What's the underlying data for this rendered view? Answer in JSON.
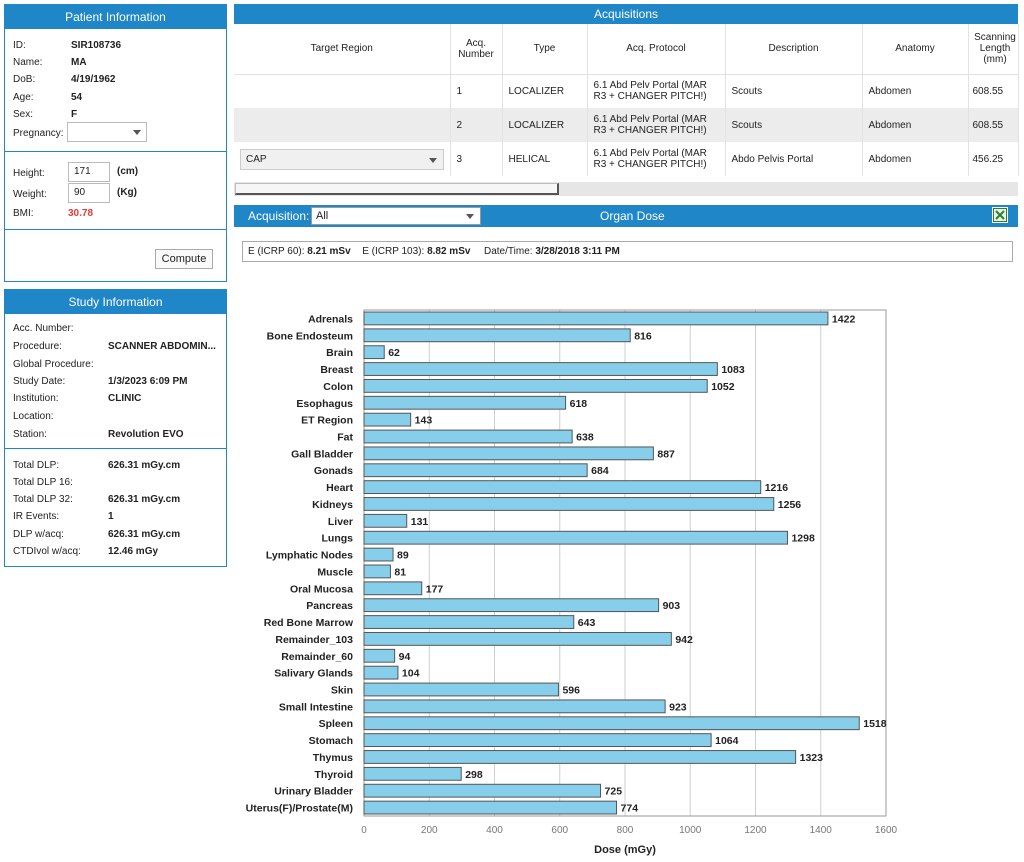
{
  "patient": {
    "title": "Patient Information",
    "fields": [
      {
        "label": "ID:",
        "value": "SIR108736"
      },
      {
        "label": "Name:",
        "value": "MA"
      },
      {
        "label": "DoB:",
        "value": "4/19/1962"
      },
      {
        "label": "Age:",
        "value": "54"
      },
      {
        "label": "Sex:",
        "value": "F"
      }
    ],
    "pregnancy_label": "Pregnancy:",
    "pregnancy_value": "",
    "height_label": "Height:",
    "height_value": "171",
    "height_unit": "(cm)",
    "weight_label": "Weight:",
    "weight_value": "90",
    "weight_unit": "(Kg)",
    "bmi_label": "BMI:",
    "bmi_value": "30.78",
    "bmi_color": "#e53935",
    "compute_label": "Compute"
  },
  "study": {
    "title": "Study Information",
    "fields": [
      {
        "label": "Acc. Number:",
        "value": ""
      },
      {
        "label": "Procedure:",
        "value": "SCANNER ABDOMIN..."
      },
      {
        "label": "Global Procedure:",
        "value": ""
      },
      {
        "label": "Study Date:",
        "value": "1/3/2023 6:09 PM"
      },
      {
        "label": "Institution:",
        "value": "CLINIC"
      },
      {
        "label": "Location:",
        "value": ""
      },
      {
        "label": "Station:",
        "value": "Revolution EVO"
      }
    ],
    "dose_fields": [
      {
        "label": "Total DLP:",
        "value": "626.31 mGy.cm"
      },
      {
        "label": "Total DLP 16:",
        "value": ""
      },
      {
        "label": "Total DLP 32:",
        "value": "626.31 mGy.cm"
      },
      {
        "label": "IR Events:",
        "value": "1"
      },
      {
        "label": "DLP w/acq:",
        "value": "626.31 mGy.cm"
      },
      {
        "label": "CTDIvol w/acq:",
        "value": "12.46 mGy"
      }
    ]
  },
  "acquisitions": {
    "title": "Acquisitions",
    "columns": [
      "Target Region",
      "Acq. Number",
      "Type",
      "Acq. Protocol",
      "Description",
      "Anatomy",
      "Scanning Length (mm)"
    ],
    "rows": [
      {
        "target": "",
        "number": "1",
        "type": "LOCALIZER",
        "protocol": "6.1 Abd Pelv Portal (MAR R3 + CHANGER PITCH!)",
        "description": "Scouts",
        "anatomy": "Abdomen",
        "length": "608.55"
      },
      {
        "target": "",
        "number": "2",
        "type": "LOCALIZER",
        "protocol": "6.1 Abd Pelv Portal (MAR R3 + CHANGER PITCH!)",
        "description": "Scouts",
        "anatomy": "Abdomen",
        "length": "608.55"
      },
      {
        "target": "CAP",
        "number": "3",
        "type": "HELICAL",
        "protocol": "6.1 Abd Pelv Portal (MAR R3 + CHANGER PITCH!)",
        "description": "Abdo Pelvis Portal",
        "anatomy": "Abdomen",
        "length": "456.25"
      }
    ]
  },
  "organ_dose": {
    "acquisition_label": "Acquisition:",
    "acquisition_value": "All",
    "title": "Organ Dose",
    "excel_icon": "excel-export-icon",
    "e60_label": "E (ICRP 60):",
    "e60_value": "8.21 mSv",
    "e103_label": "E (ICRP 103):",
    "e103_value": "8.82 mSv",
    "datetime_label": "Date/Time:",
    "datetime_value": "3/28/2018 3:11 PM"
  },
  "chart_data": {
    "type": "bar",
    "orientation": "horizontal",
    "categories": [
      "Adrenals",
      "Bone Endosteum",
      "Brain",
      "Breast",
      "Colon",
      "Esophagus",
      "ET Region",
      "Fat",
      "Gall Bladder",
      "Gonads",
      "Heart",
      "Kidneys",
      "Liver",
      "Lungs",
      "Lymphatic Nodes",
      "Muscle",
      "Oral Mucosa",
      "Pancreas",
      "Red Bone Marrow",
      "Remainder_103",
      "Remainder_60",
      "Salivary Glands",
      "Skin",
      "Small Intestine",
      "Spleen",
      "Stomach",
      "Thymus",
      "Thyroid",
      "Urinary Bladder",
      "Uterus(F)/Prostate(M)"
    ],
    "values": [
      1422,
      816,
      62,
      1083,
      1052,
      618,
      143,
      638,
      887,
      684,
      1216,
      1256,
      131,
      1298,
      89,
      81,
      177,
      903,
      643,
      942,
      94,
      104,
      596,
      923,
      1518,
      1064,
      1323,
      298,
      725,
      774
    ],
    "xlabel": "Dose (mGy)",
    "xlim": [
      0,
      1600
    ],
    "xticks": [
      "0",
      "200",
      "400",
      "600",
      "800",
      "1000",
      "1200",
      "1400",
      "1600"
    ],
    "grid": true,
    "bar_color": "#87ceeb"
  }
}
